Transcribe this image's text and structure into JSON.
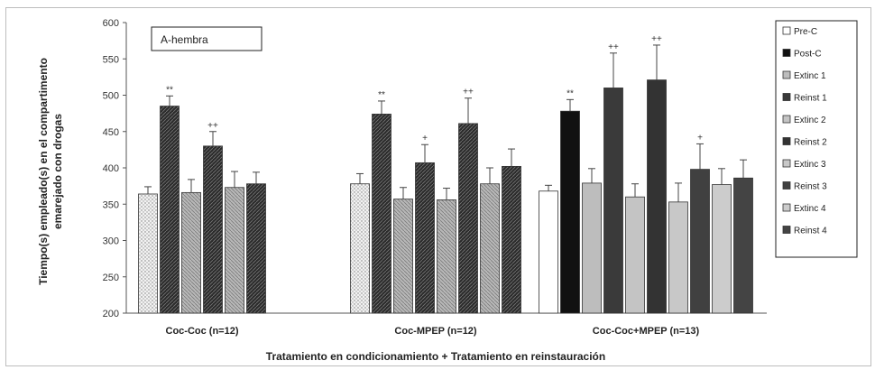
{
  "chart_data": {
    "type": "bar",
    "panel_label": "A-hembra",
    "ylabel": "Tiempo(s) empleado(s) en el compartimento emarejado con drogas",
    "ylabel_lines": [
      "Tiempo(s) empleado(s) en el compartimento",
      "emarejado con drogas"
    ],
    "xlabel": "Tratamiento en condicionamiento + Tratamiento en reinstauración",
    "ylim": [
      200,
      600
    ],
    "yticks": [
      200,
      250,
      300,
      350,
      400,
      450,
      500,
      550,
      600
    ],
    "categories": [
      "Coc-Coc (n=12)",
      "Coc-MPEP (n=12)",
      "Coc-Coc+MPEP (n=13)"
    ],
    "series": [
      {
        "name": "Pre-C",
        "values": [
          364,
          378,
          368
        ],
        "errors": [
          10,
          14,
          8
        ],
        "annotations": [
          "",
          "",
          ""
        ]
      },
      {
        "name": "Post-C",
        "values": [
          485,
          474,
          478
        ],
        "errors": [
          14,
          18,
          16
        ],
        "annotations": [
          "**",
          "**",
          "**"
        ]
      },
      {
        "name": "Extinc 1",
        "values": [
          366,
          357,
          379
        ],
        "errors": [
          18,
          16,
          20
        ],
        "annotations": [
          "",
          "",
          ""
        ]
      },
      {
        "name": "Reinst 1",
        "values": [
          430,
          407,
          510
        ],
        "errors": [
          20,
          25,
          48
        ],
        "annotations": [
          "++",
          "+",
          "++"
        ]
      },
      {
        "name": "Extinc 2",
        "values": [
          373,
          356,
          360
        ],
        "errors": [
          22,
          16,
          18
        ],
        "annotations": [
          "",
          "",
          ""
        ]
      },
      {
        "name": "Reinst 2",
        "values": [
          378,
          461,
          521
        ],
        "errors": [
          16,
          35,
          48
        ],
        "annotations": [
          "",
          "++",
          "++"
        ]
      },
      {
        "name": "Extinc 3",
        "values": [
          null,
          378,
          353
        ],
        "errors": [
          null,
          22,
          26
        ],
        "annotations": [
          "",
          "",
          ""
        ]
      },
      {
        "name": "Reinst 3",
        "values": [
          null,
          402,
          398
        ],
        "errors": [
          null,
          24,
          35
        ],
        "annotations": [
          "",
          "",
          "+"
        ]
      },
      {
        "name": "Extinc 4",
        "values": [
          null,
          null,
          377
        ],
        "errors": [
          null,
          null,
          22
        ],
        "annotations": [
          "",
          "",
          ""
        ]
      },
      {
        "name": "Reinst 4",
        "values": [
          null,
          null,
          386
        ],
        "errors": [
          null,
          null,
          25
        ],
        "annotations": [
          "",
          "",
          ""
        ]
      }
    ],
    "colors": {
      "Pre-C": "#ffffff",
      "Post-C": "#111111",
      "Extinc 1": "#bdbdbd",
      "Reinst 1": "#3a3a3a",
      "Extinc 2": "#c4c4c4",
      "Reinst 2": "#333333",
      "Extinc 3": "#c8c8c8",
      "Reinst 3": "#404040",
      "Extinc 4": "#cccccc",
      "Reinst 4": "#444444"
    },
    "legend_position": "right",
    "grid": false
  }
}
